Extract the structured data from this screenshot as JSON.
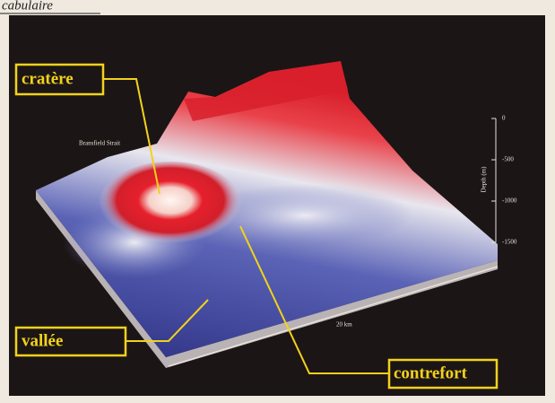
{
  "header": {
    "title": "cabulaire"
  },
  "figure": {
    "place_label": "Bransfield Strait",
    "depth_axis": {
      "label": "Depth (m)",
      "ticks": [
        "0",
        "-500",
        "-1000",
        "-1500"
      ]
    },
    "scale_label": "20 km"
  },
  "labels": [
    "cratère",
    "vallée",
    "contrefort"
  ]
}
